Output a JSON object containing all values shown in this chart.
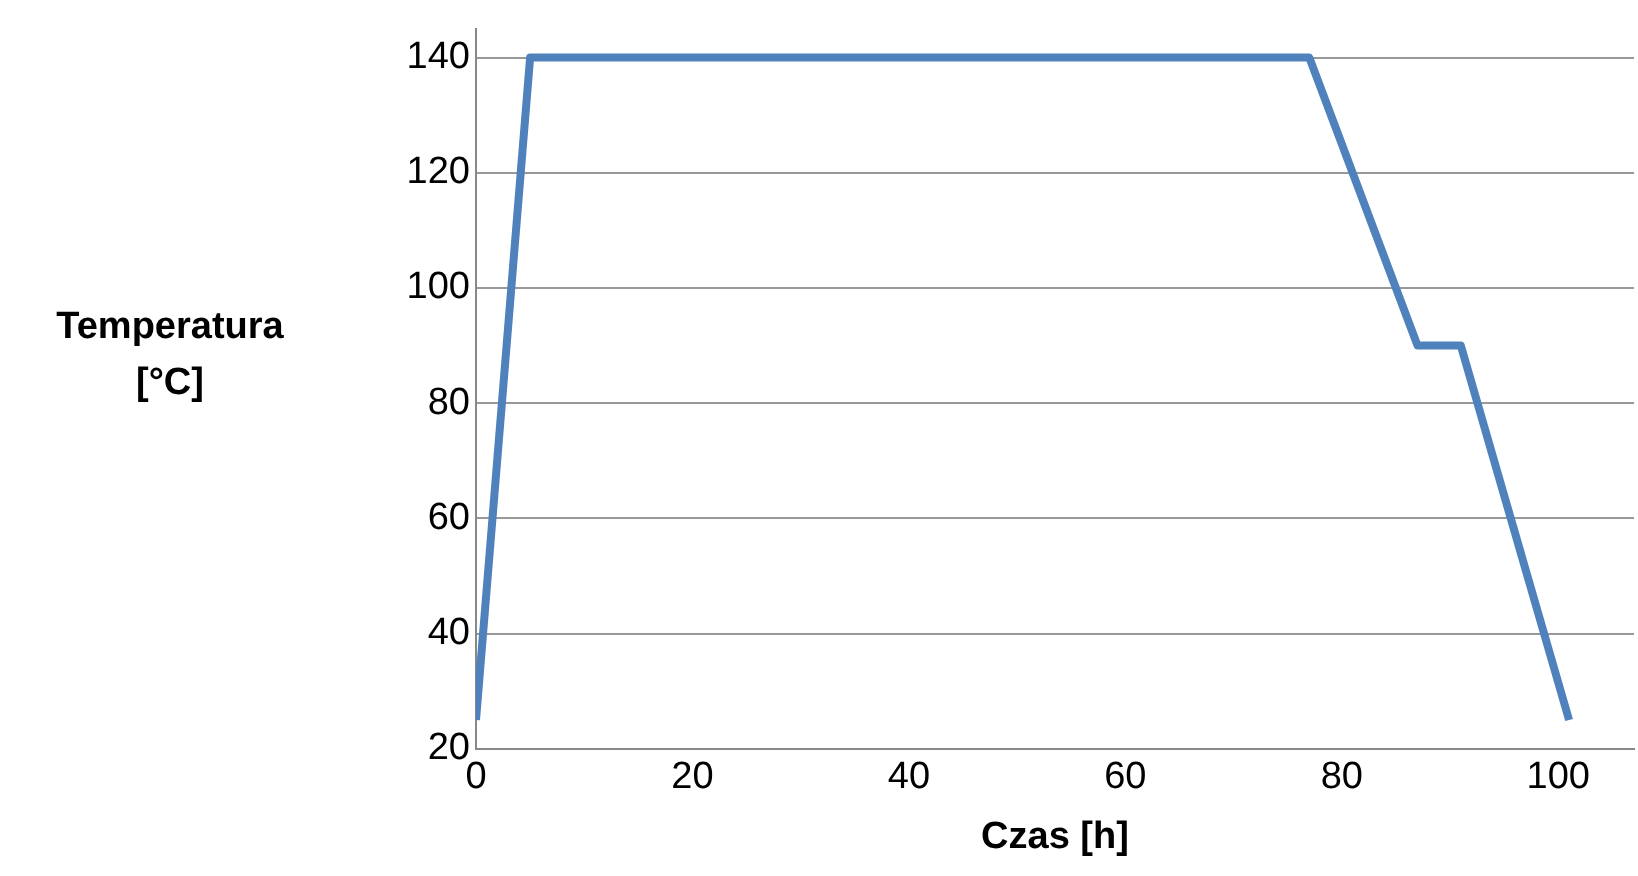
{
  "chart_data": {
    "type": "line",
    "xlabel": "Czas [h]",
    "ylabel": "Temperatura [°C]",
    "series": [
      {
        "color": "#4f81bd",
        "x": [
          0,
          5,
          77,
          87,
          91,
          101
        ],
        "values": [
          25,
          140,
          140,
          90,
          90,
          25
        ]
      }
    ],
    "xlim": [
      0,
      107
    ],
    "xticks": [
      0,
      20,
      40,
      60,
      80,
      100
    ],
    "ylim": [
      20,
      145
    ],
    "yticks": [
      20,
      40,
      60,
      80,
      100,
      120,
      140
    ],
    "grid": "y",
    "legend": false,
    "marker": "none",
    "line_style": "solid"
  }
}
